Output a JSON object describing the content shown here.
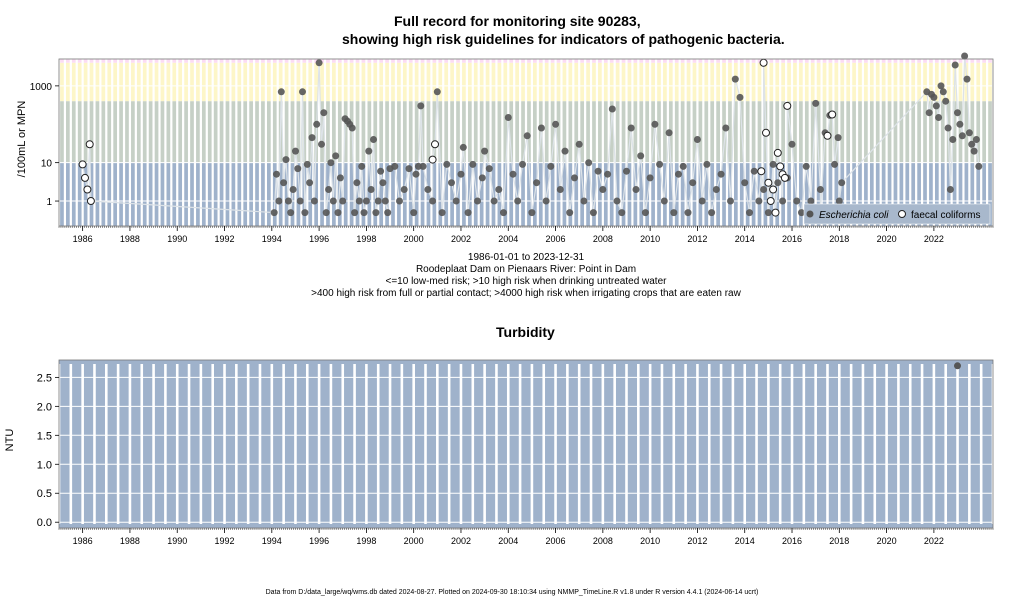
{
  "titles": {
    "main_line1": "Full record for monitoring site 90283,",
    "main_line2": "showing high risk guidelines for indicators of pathogenic bacteria.",
    "turbidity": "Turbidity"
  },
  "captions": {
    "period": "1986-01-01 to 2023-12-31",
    "site": "Roodeplaat Dam on Pienaars River: Point in Dam",
    "risk1": "<=10 low-med risk; >10 high risk when drinking untreated water",
    "risk2": ">400 high risk from full or partial contact; >4000 high risk when irrigating crops that are eaten raw"
  },
  "footer": "Data from D:/data_large/wq/wms.db dated 2024-08-27. Plotted on 2024-09-30 18:10:34 using NMMP_TimeLine.R v1.8 under R version 4.4.1 (2024-06-14 ucrt)",
  "colors": {
    "band_low": "#9fb2cb",
    "band_10": "#c6d0c6",
    "band_400": "#fdf6c8",
    "band_4000": "#fbdcf4",
    "ecoli": "#555555",
    "faecal_fill": "#ffffff",
    "faecal_stroke": "#222222"
  },
  "chart_data": [
    {
      "type": "scatter",
      "ylabel": "/100mL or MPN",
      "y_scale": "log",
      "xlim": [
        1985.0,
        2024.5
      ],
      "ylim_log10": [
        -0.65,
        3.7
      ],
      "y_ticks": [
        1,
        10,
        1000
      ],
      "y_tick_labels": [
        "1",
        "10",
        "1000"
      ],
      "x_ticks": [
        1986,
        1988,
        1990,
        1992,
        1994,
        1996,
        1998,
        2000,
        2002,
        2004,
        2006,
        2008,
        2010,
        2012,
        2014,
        2016,
        2018,
        2020,
        2022
      ],
      "thresholds": [
        10,
        400,
        4000
      ],
      "legend": {
        "position": "bottom-right",
        "entries": [
          "Escherichia coli",
          "faecal coliforms"
        ]
      },
      "series": [
        {
          "name": "Escherichia coli",
          "marker": "filled-circle",
          "points": [
            [
              1994.1,
              0.5
            ],
            [
              1994.2,
              5
            ],
            [
              1994.3,
              1
            ],
            [
              1994.4,
              700
            ],
            [
              1994.5,
              3
            ],
            [
              1994.6,
              12
            ],
            [
              1994.7,
              1
            ],
            [
              1994.8,
              0.5
            ],
            [
              1994.9,
              2
            ],
            [
              1995.0,
              20
            ],
            [
              1995.1,
              7
            ],
            [
              1995.2,
              1
            ],
            [
              1995.3,
              700
            ],
            [
              1995.4,
              0.5
            ],
            [
              1995.5,
              9
            ],
            [
              1995.6,
              3
            ],
            [
              1995.7,
              45
            ],
            [
              1995.8,
              1
            ],
            [
              1995.9,
              100
            ],
            [
              1996.0,
              4000
            ],
            [
              1996.1,
              30
            ],
            [
              1996.2,
              200
            ],
            [
              1996.3,
              0.5
            ],
            [
              1996.4,
              2
            ],
            [
              1996.5,
              10
            ],
            [
              1996.6,
              1
            ],
            [
              1996.7,
              15
            ],
            [
              1996.8,
              0.5
            ],
            [
              1996.9,
              4
            ],
            [
              1997.0,
              1
            ],
            [
              1997.1,
              140
            ],
            [
              1997.2,
              120
            ],
            [
              1997.3,
              100
            ],
            [
              1997.4,
              80
            ],
            [
              1997.5,
              0.5
            ],
            [
              1997.6,
              3
            ],
            [
              1997.7,
              1
            ],
            [
              1997.8,
              8
            ],
            [
              1997.9,
              0.5
            ],
            [
              1998.0,
              1
            ],
            [
              1998.1,
              20
            ],
            [
              1998.2,
              2
            ],
            [
              1998.3,
              40
            ],
            [
              1998.4,
              0.5
            ],
            [
              1998.5,
              1
            ],
            [
              1998.6,
              6
            ],
            [
              1998.7,
              3
            ],
            [
              1998.8,
              1
            ],
            [
              1998.9,
              0.5
            ],
            [
              1999.0,
              7
            ],
            [
              1999.2,
              8
            ],
            [
              1999.4,
              1
            ],
            [
              1999.6,
              2
            ],
            [
              1999.8,
              7
            ],
            [
              2000.0,
              0.5
            ],
            [
              2000.1,
              5
            ],
            [
              2000.2,
              8
            ],
            [
              2000.3,
              300
            ],
            [
              2000.4,
              8
            ],
            [
              2000.6,
              2
            ],
            [
              2000.8,
              1
            ],
            [
              2001.0,
              700
            ],
            [
              2001.2,
              0.5
            ],
            [
              2001.4,
              9
            ],
            [
              2001.6,
              3
            ],
            [
              2001.8,
              1
            ],
            [
              2002.0,
              5
            ],
            [
              2002.1,
              25
            ],
            [
              2002.3,
              0.5
            ],
            [
              2002.5,
              9
            ],
            [
              2002.7,
              1
            ],
            [
              2002.9,
              4
            ],
            [
              2003.0,
              20
            ],
            [
              2003.2,
              7
            ],
            [
              2003.4,
              1
            ],
            [
              2003.6,
              2
            ],
            [
              2003.8,
              0.5
            ],
            [
              2004.0,
              150
            ],
            [
              2004.2,
              5
            ],
            [
              2004.4,
              1
            ],
            [
              2004.6,
              9
            ],
            [
              2004.8,
              50
            ],
            [
              2005.0,
              0.5
            ],
            [
              2005.2,
              3
            ],
            [
              2005.4,
              80
            ],
            [
              2005.6,
              1
            ],
            [
              2005.8,
              8
            ],
            [
              2006.0,
              100
            ],
            [
              2006.2,
              2
            ],
            [
              2006.4,
              20
            ],
            [
              2006.6,
              0.5
            ],
            [
              2006.8,
              4
            ],
            [
              2007.0,
              30
            ],
            [
              2007.2,
              1
            ],
            [
              2007.4,
              10
            ],
            [
              2007.6,
              0.5
            ],
            [
              2007.8,
              6
            ],
            [
              2008.0,
              2
            ],
            [
              2008.2,
              5
            ],
            [
              2008.4,
              250
            ],
            [
              2008.6,
              1
            ],
            [
              2008.8,
              0.5
            ],
            [
              2009.0,
              6
            ],
            [
              2009.2,
              80
            ],
            [
              2009.4,
              2
            ],
            [
              2009.6,
              15
            ],
            [
              2009.8,
              0.5
            ],
            [
              2010.0,
              4
            ],
            [
              2010.2,
              100
            ],
            [
              2010.4,
              9
            ],
            [
              2010.6,
              1
            ],
            [
              2010.8,
              60
            ],
            [
              2011.0,
              0.5
            ],
            [
              2011.2,
              5
            ],
            [
              2011.4,
              8
            ],
            [
              2011.6,
              0.5
            ],
            [
              2011.8,
              3
            ],
            [
              2012.0,
              40
            ],
            [
              2012.2,
              1
            ],
            [
              2012.4,
              9
            ],
            [
              2012.6,
              0.5
            ],
            [
              2012.8,
              2
            ],
            [
              2013.0,
              5
            ],
            [
              2013.2,
              80
            ],
            [
              2013.4,
              1
            ],
            [
              2013.6,
              1500
            ],
            [
              2013.8,
              500
            ],
            [
              2014.0,
              3
            ],
            [
              2014.2,
              0.5
            ],
            [
              2014.4,
              6
            ],
            [
              2014.6,
              1
            ],
            [
              2014.8,
              2
            ],
            [
              2015.0,
              0.5
            ],
            [
              2015.2,
              9
            ],
            [
              2015.4,
              3
            ],
            [
              2015.6,
              1
            ],
            [
              2015.8,
              4
            ],
            [
              2016.0,
              30
            ],
            [
              2016.2,
              1
            ],
            [
              2016.4,
              0.5
            ],
            [
              2016.6,
              8
            ],
            [
              2016.8,
              1
            ],
            [
              2017.0,
              350
            ],
            [
              2017.2,
              2
            ],
            [
              2017.4,
              60
            ],
            [
              2017.6,
              170
            ],
            [
              2017.8,
              9
            ],
            [
              2017.95,
              45
            ],
            [
              2018.0,
              1
            ],
            [
              2018.1,
              3
            ],
            [
              2021.7,
              700
            ],
            [
              2021.8,
              200
            ],
            [
              2021.9,
              600
            ],
            [
              2022.0,
              500
            ],
            [
              2022.1,
              300
            ],
            [
              2022.2,
              150
            ],
            [
              2022.3,
              1000
            ],
            [
              2022.4,
              700
            ],
            [
              2022.5,
              400
            ],
            [
              2022.6,
              80
            ],
            [
              2022.7,
              2
            ],
            [
              2022.8,
              40
            ],
            [
              2022.9,
              3500
            ],
            [
              2023.0,
              200
            ],
            [
              2023.1,
              100
            ],
            [
              2023.2,
              50
            ],
            [
              2023.3,
              6000
            ],
            [
              2023.4,
              1500
            ],
            [
              2023.5,
              60
            ],
            [
              2023.6,
              30
            ],
            [
              2023.7,
              20
            ],
            [
              2023.8,
              40
            ],
            [
              2023.9,
              8
            ]
          ]
        },
        {
          "name": "faecal coliforms",
          "marker": "open-circle",
          "points": [
            [
              1986.0,
              9
            ],
            [
              1986.1,
              4
            ],
            [
              1986.2,
              2
            ],
            [
              1986.3,
              30
            ],
            [
              1986.35,
              1
            ],
            [
              2000.8,
              12
            ],
            [
              2000.9,
              30
            ],
            [
              2014.7,
              6
            ],
            [
              2014.8,
              4000
            ],
            [
              2014.9,
              60
            ],
            [
              2015.0,
              3
            ],
            [
              2015.1,
              1
            ],
            [
              2015.2,
              2
            ],
            [
              2015.3,
              0.5
            ],
            [
              2015.4,
              18
            ],
            [
              2015.5,
              8
            ],
            [
              2015.6,
              5
            ],
            [
              2015.7,
              4
            ],
            [
              2015.8,
              300
            ],
            [
              2017.2,
              0.5
            ],
            [
              2017.5,
              50
            ],
            [
              2017.7,
              180
            ]
          ]
        }
      ]
    },
    {
      "type": "scatter",
      "title": "Turbidity",
      "ylabel": "NTU",
      "xlim": [
        1985.0,
        2024.5
      ],
      "ylim": [
        -0.1,
        2.8
      ],
      "y_ticks": [
        0.0,
        0.5,
        1.0,
        1.5,
        2.0,
        2.5
      ],
      "y_tick_labels": [
        "0.0",
        "0.5",
        "1.0",
        "1.5",
        "2.0",
        "2.5"
      ],
      "x_ticks": [
        1986,
        1988,
        1990,
        1992,
        1994,
        1996,
        1998,
        2000,
        2002,
        2004,
        2006,
        2008,
        2010,
        2012,
        2014,
        2016,
        2018,
        2020,
        2022
      ],
      "series": [
        {
          "marker": "filled-circle",
          "points": [
            [
              2023.0,
              2.7
            ]
          ]
        }
      ]
    }
  ]
}
